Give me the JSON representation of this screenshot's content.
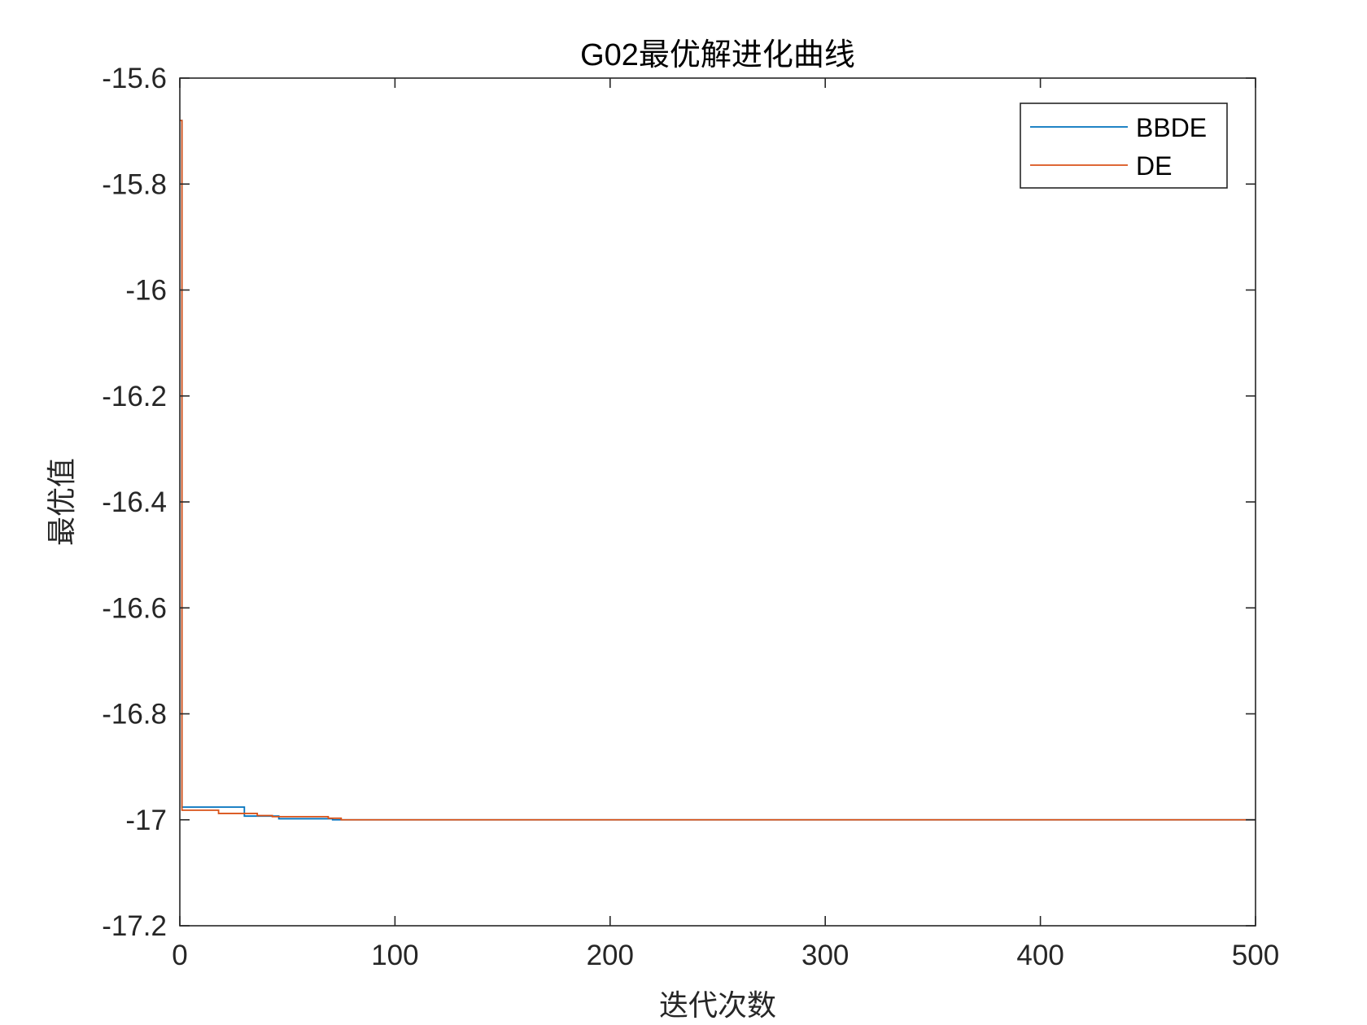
{
  "chart_data": {
    "type": "line",
    "title": "G02最优解进化曲线",
    "xlabel": "迭代次数",
    "ylabel": "最优值",
    "xlim": [
      0,
      500
    ],
    "ylim": [
      -17.2,
      -15.6
    ],
    "xticks": [
      0,
      100,
      200,
      300,
      400,
      500
    ],
    "xtick_labels": [
      "0",
      "100",
      "200",
      "300",
      "400",
      "500"
    ],
    "yticks": [
      -15.6,
      -15.8,
      -16,
      -16.2,
      -16.4,
      -16.6,
      -16.8,
      -17,
      -17.2
    ],
    "ytick_labels": [
      "-15.6",
      "-15.8",
      "-16",
      "-16.2",
      "-16.4",
      "-16.6",
      "-16.8",
      "-17",
      "-17.2"
    ],
    "grid": false,
    "legend_position": "top-right",
    "series": [
      {
        "name": "BBDE",
        "color": "#0072BD",
        "step": true,
        "points": [
          [
            0,
            -15.68
          ],
          [
            1,
            -16.976
          ],
          [
            29,
            -16.976
          ],
          [
            30,
            -16.993
          ],
          [
            45,
            -16.993
          ],
          [
            46,
            -16.998
          ],
          [
            70,
            -16.998
          ],
          [
            71,
            -17.0
          ],
          [
            500,
            -17.0
          ]
        ]
      },
      {
        "name": "DE",
        "color": "#D95319",
        "step": true,
        "points": [
          [
            0,
            -15.68
          ],
          [
            1,
            -16.982
          ],
          [
            17,
            -16.982
          ],
          [
            18,
            -16.988
          ],
          [
            35,
            -16.988
          ],
          [
            36,
            -16.992
          ],
          [
            42,
            -16.992
          ],
          [
            43,
            -16.994
          ],
          [
            68,
            -16.994
          ],
          [
            69,
            -16.997
          ],
          [
            74,
            -16.997
          ],
          [
            75,
            -17.0
          ],
          [
            500,
            -17.0
          ]
        ]
      }
    ]
  }
}
